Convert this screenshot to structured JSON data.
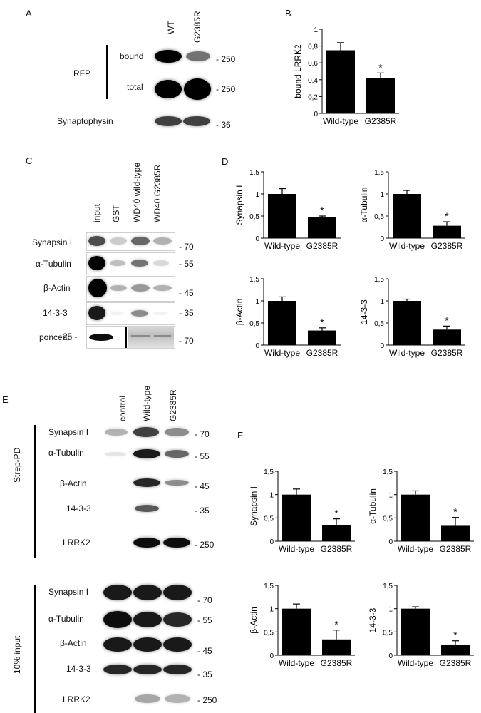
{
  "panels": {
    "A": "A",
    "B": "B",
    "C": "C",
    "D": "D",
    "E": "E",
    "F": "F"
  },
  "panel_a": {
    "lanes": [
      "WT",
      "G2385R"
    ],
    "group_label": "RFP",
    "rows": [
      "bound",
      "total",
      "Synaptophysin"
    ],
    "markers": [
      "- 250",
      "- 250",
      "- 36"
    ],
    "levels": {
      "bound": [
        1.0,
        0.55
      ],
      "total": [
        1.0,
        1.0
      ],
      "synaptophysin": [
        0.75,
        0.75
      ]
    }
  },
  "panel_c": {
    "lanes": [
      "input",
      "GST",
      "WD40 wild-type",
      "WD40 G2385R"
    ],
    "rows": [
      "Synapsin I",
      "α-Tubulin",
      "β-Actin",
      "14-3-3",
      "ponceau"
    ],
    "markers": [
      "- 70",
      "- 55",
      "- 45",
      "- 35",
      "- 70"
    ],
    "ponceau_left_marker": "25 -",
    "levels": {
      "synapsin": [
        0.7,
        0.2,
        0.6,
        0.3
      ],
      "tubulin": [
        1.0,
        0.25,
        0.55,
        0.15
      ],
      "actin": [
        1.0,
        0.3,
        0.4,
        0.3
      ],
      "b1433": [
        0.9,
        0.05,
        0.45,
        0.05
      ]
    }
  },
  "panel_e": {
    "lanes": [
      "control",
      "Wild-type",
      "G2385R"
    ],
    "group_pd": "Strep-PD",
    "group_input": "10% input",
    "rows_pd": [
      "Synapsin I",
      "α-Tubulin",
      "β-Actin",
      "14-3-3",
      "LRRK2"
    ],
    "rows_input": [
      "Synapsin I",
      "α-Tubulin",
      "β-Actin",
      "14-3-3",
      "LRRK2"
    ],
    "markers_pd": [
      "- 70",
      "- 55",
      "- 45",
      "- 35",
      "- 250"
    ],
    "markers_input": [
      "- 70",
      "- 55",
      "- 45",
      "- 35",
      "- 250"
    ],
    "levels_pd": {
      "synapsin": [
        0.3,
        0.75,
        0.45
      ],
      "tubulin": [
        0.1,
        0.9,
        0.6
      ],
      "actin": [
        0.0,
        0.85,
        0.45
      ],
      "b1433": [
        0.0,
        0.65,
        0.0
      ],
      "lrrk2": [
        0.0,
        0.95,
        0.95
      ]
    },
    "levels_input": {
      "synapsin": [
        0.9,
        0.9,
        0.9
      ],
      "tubulin": [
        0.95,
        0.9,
        0.85
      ],
      "actin": [
        0.9,
        0.9,
        0.9
      ],
      "b1433": [
        0.85,
        0.85,
        0.85
      ],
      "lrrk2": [
        0.0,
        0.35,
        0.3
      ]
    }
  },
  "chart_data": [
    {
      "id": "B",
      "type": "bar",
      "categories": [
        "Wild-type",
        "G2385R"
      ],
      "values": [
        0.75,
        0.42
      ],
      "errors": [
        0.09,
        0.06
      ],
      "ylabel": "bound LRRK2",
      "ylim": [
        0,
        1
      ],
      "yticks": [
        "0",
        "0,2",
        "0,4",
        "0,6",
        "0,8",
        "1"
      ],
      "significance": [
        "",
        "*"
      ]
    },
    {
      "id": "D1",
      "type": "bar",
      "categories": [
        "Wild-type",
        "G2385R"
      ],
      "values": [
        1.0,
        0.47
      ],
      "errors": [
        0.12,
        0.03
      ],
      "ylabel": "Synapsin I",
      "ylim": [
        0,
        1.5
      ],
      "yticks": [
        "0",
        "0,5",
        "1",
        "1,5"
      ],
      "significance": [
        "",
        "*"
      ]
    },
    {
      "id": "D2",
      "type": "bar",
      "categories": [
        "Wild-type",
        "G2385R"
      ],
      "values": [
        1.0,
        0.28
      ],
      "errors": [
        0.08,
        0.09
      ],
      "ylabel": "α-Tubulin",
      "ylim": [
        0,
        1.5
      ],
      "yticks": [
        "0",
        "0,5",
        "1",
        "1,5"
      ],
      "significance": [
        "",
        "*"
      ]
    },
    {
      "id": "D3",
      "type": "bar",
      "categories": [
        "Wild-type",
        "G2385R"
      ],
      "values": [
        1.0,
        0.33
      ],
      "errors": [
        0.09,
        0.06
      ],
      "ylabel": "β-Actin",
      "ylim": [
        0,
        1.5
      ],
      "yticks": [
        "0",
        "0,5",
        "1",
        "1,5"
      ],
      "significance": [
        "",
        "*"
      ]
    },
    {
      "id": "D4",
      "type": "bar",
      "categories": [
        "Wild-type",
        "G2385R"
      ],
      "values": [
        1.0,
        0.35
      ],
      "errors": [
        0.04,
        0.08
      ],
      "ylabel": "14-3-3",
      "ylim": [
        0,
        1.5
      ],
      "yticks": [
        "0",
        "0,5",
        "1",
        "1,5"
      ],
      "significance": [
        "",
        "*"
      ]
    },
    {
      "id": "F1",
      "type": "bar",
      "categories": [
        "Wild-type",
        "G2385R"
      ],
      "values": [
        1.0,
        0.35
      ],
      "errors": [
        0.12,
        0.13
      ],
      "ylabel": "Synapsin I",
      "ylim": [
        0,
        1.5
      ],
      "yticks": [
        "0",
        "0,5",
        "1",
        "1,5"
      ],
      "significance": [
        "",
        "*"
      ]
    },
    {
      "id": "F2",
      "type": "bar",
      "categories": [
        "Wild-type",
        "G2385R"
      ],
      "values": [
        1.0,
        0.33
      ],
      "errors": [
        0.08,
        0.18
      ],
      "ylabel": "α-Tubulin",
      "ylim": [
        0,
        1.5
      ],
      "yticks": [
        "0",
        "0,5",
        "1",
        "1,5"
      ],
      "significance": [
        "",
        "*"
      ]
    },
    {
      "id": "F3",
      "type": "bar",
      "categories": [
        "Wild-type",
        "G2385R"
      ],
      "values": [
        1.0,
        0.34
      ],
      "errors": [
        0.1,
        0.2
      ],
      "ylabel": "β-Actin",
      "ylim": [
        0,
        1.5
      ],
      "yticks": [
        "0",
        "0,5",
        "1",
        "1,5"
      ],
      "significance": [
        "",
        "*"
      ]
    },
    {
      "id": "F4",
      "type": "bar",
      "categories": [
        "Wild-type",
        "G2385R"
      ],
      "values": [
        1.0,
        0.23
      ],
      "errors": [
        0.04,
        0.08
      ],
      "ylabel": "14-3-3",
      "ylim": [
        0,
        1.5
      ],
      "yticks": [
        "0",
        "0,5",
        "1",
        "1,5"
      ],
      "significance": [
        "",
        "*"
      ]
    }
  ]
}
